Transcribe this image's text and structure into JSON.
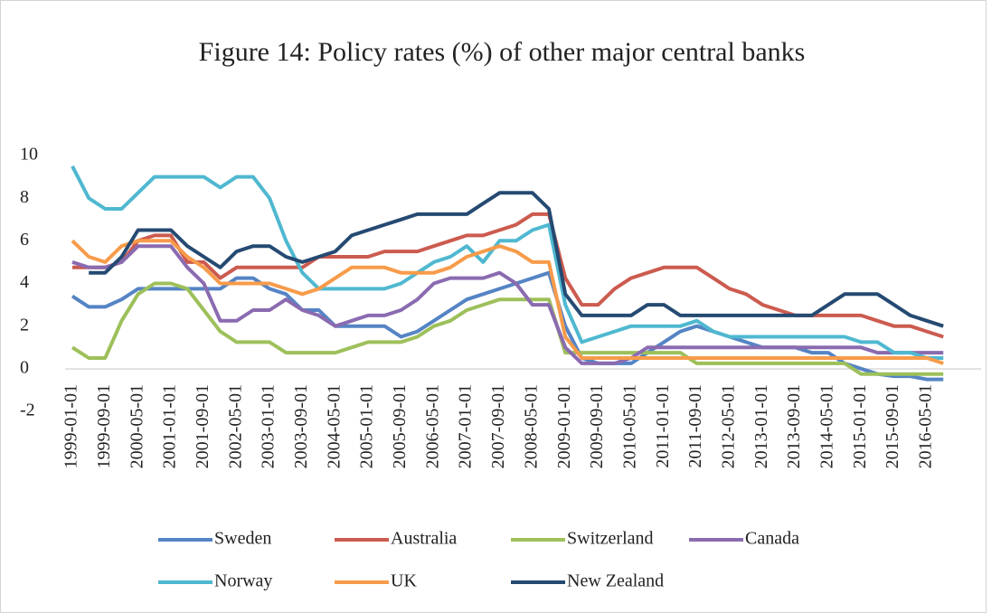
{
  "chart_data": {
    "type": "line",
    "title": "Figure 14: Policy rates (%) of  other major central banks",
    "categories": [
      "1999-01-01",
      null,
      "1999-09-01",
      null,
      "2000-05-01",
      null,
      "2001-01-01",
      null,
      "2001-09-01",
      null,
      "2002-05-01",
      null,
      "2003-01-01",
      null,
      "2003-09-01",
      null,
      "2004-05-01",
      null,
      "2005-01-01",
      null,
      "2005-09-01",
      null,
      "2006-05-01",
      null,
      "2007-01-01",
      null,
      "2007-09-01",
      null,
      "2008-05-01",
      null,
      "2009-01-01",
      null,
      "2009-09-01",
      null,
      "2010-05-01",
      null,
      "2011-01-01",
      null,
      "2011-09-01",
      null,
      "2012-05-01",
      null,
      "2013-01-01",
      null,
      "2013-09-01",
      null,
      "2014-05-01",
      null,
      "2015-01-01",
      null,
      "2015-09-01",
      null,
      "2016-05-01",
      null
    ],
    "series": [
      {
        "name": "Sweden",
        "color": "#5584c4",
        "values": [
          3.4,
          2.9,
          2.9,
          3.25,
          3.75,
          3.75,
          3.75,
          3.75,
          3.75,
          3.75,
          4.25,
          4.25,
          3.75,
          3.5,
          2.75,
          2.75,
          2.0,
          2.0,
          2.0,
          2.0,
          1.5,
          1.75,
          2.25,
          2.75,
          3.25,
          3.5,
          3.75,
          4.0,
          4.25,
          4.5,
          2.0,
          0.5,
          0.25,
          0.25,
          0.25,
          0.75,
          1.25,
          1.75,
          2.0,
          1.75,
          1.5,
          1.25,
          1.0,
          1.0,
          1.0,
          0.75,
          0.75,
          0.25,
          0.0,
          -0.25,
          -0.35,
          -0.35,
          -0.5,
          -0.5
        ]
      },
      {
        "name": "Australia",
        "color": "#cc5b4f",
        "values": [
          4.75,
          4.75,
          4.75,
          5.0,
          6.0,
          6.25,
          6.25,
          5.0,
          5.0,
          4.25,
          4.75,
          4.75,
          4.75,
          4.75,
          4.75,
          5.25,
          5.25,
          5.25,
          5.25,
          5.5,
          5.5,
          5.5,
          5.75,
          6.0,
          6.25,
          6.25,
          6.5,
          6.75,
          7.25,
          7.25,
          4.25,
          3.0,
          3.0,
          3.75,
          4.25,
          4.5,
          4.75,
          4.75,
          4.75,
          4.25,
          3.75,
          3.5,
          3.0,
          2.75,
          2.5,
          2.5,
          2.5,
          2.5,
          2.5,
          2.25,
          2.0,
          2.0,
          1.75,
          1.5
        ]
      },
      {
        "name": "Switzerland",
        "color": "#9dc05a",
        "values": [
          1.0,
          0.5,
          0.5,
          2.25,
          3.5,
          4.0,
          4.0,
          3.75,
          2.75,
          1.75,
          1.25,
          1.25,
          1.25,
          0.75,
          0.75,
          0.75,
          0.75,
          1.0,
          1.25,
          1.25,
          1.25,
          1.5,
          2.0,
          2.25,
          2.75,
          3.0,
          3.25,
          3.25,
          3.25,
          3.25,
          0.75,
          0.75,
          0.75,
          0.75,
          0.75,
          0.75,
          0.75,
          0.75,
          0.25,
          0.25,
          0.25,
          0.25,
          0.25,
          0.25,
          0.25,
          0.25,
          0.25,
          0.25,
          -0.25,
          -0.25,
          -0.25,
          -0.25,
          -0.25,
          -0.25
        ]
      },
      {
        "name": "Canada",
        "color": "#8a6bb0",
        "values": [
          5.0,
          4.75,
          4.75,
          5.0,
          5.75,
          5.75,
          5.75,
          4.75,
          4.0,
          2.25,
          2.25,
          2.75,
          2.75,
          3.25,
          2.75,
          2.5,
          2.0,
          2.25,
          2.5,
          2.5,
          2.75,
          3.25,
          4.0,
          4.25,
          4.25,
          4.25,
          4.5,
          4.0,
          3.0,
          3.0,
          1.0,
          0.25,
          0.25,
          0.25,
          0.5,
          1.0,
          1.0,
          1.0,
          1.0,
          1.0,
          1.0,
          1.0,
          1.0,
          1.0,
          1.0,
          1.0,
          1.0,
          1.0,
          1.0,
          0.75,
          0.75,
          0.75,
          0.75,
          0.75
        ]
      },
      {
        "name": "Norway",
        "color": "#4fb8d0",
        "values": [
          9.5,
          8.0,
          7.5,
          7.5,
          8.25,
          9.0,
          9.0,
          9.0,
          9.0,
          8.5,
          9.0,
          9.0,
          8.0,
          6.0,
          4.5,
          3.75,
          3.75,
          3.75,
          3.75,
          3.75,
          4.0,
          4.5,
          5.0,
          5.25,
          5.75,
          5.0,
          6.0,
          6.0,
          6.5,
          6.75,
          3.0,
          1.25,
          1.5,
          1.75,
          2.0,
          2.0,
          2.0,
          2.0,
          2.25,
          1.75,
          1.5,
          1.5,
          1.5,
          1.5,
          1.5,
          1.5,
          1.5,
          1.5,
          1.25,
          1.25,
          0.75,
          0.75,
          0.5,
          0.5
        ]
      },
      {
        "name": "UK",
        "color": "#f79b4a",
        "values": [
          6.0,
          5.25,
          5.0,
          5.75,
          6.0,
          6.0,
          6.0,
          5.25,
          4.75,
          4.0,
          4.0,
          4.0,
          4.0,
          3.75,
          3.5,
          3.75,
          4.25,
          4.75,
          4.75,
          4.75,
          4.5,
          4.5,
          4.5,
          4.75,
          5.25,
          5.5,
          5.75,
          5.5,
          5.0,
          5.0,
          1.5,
          0.5,
          0.5,
          0.5,
          0.5,
          0.5,
          0.5,
          0.5,
          0.5,
          0.5,
          0.5,
          0.5,
          0.5,
          0.5,
          0.5,
          0.5,
          0.5,
          0.5,
          0.5,
          0.5,
          0.5,
          0.5,
          0.5,
          0.25
        ]
      },
      {
        "name": "New Zealand",
        "color": "#254a72",
        "values": [
          null,
          4.5,
          4.5,
          5.25,
          6.5,
          6.5,
          6.5,
          5.75,
          5.25,
          4.75,
          5.5,
          5.75,
          5.75,
          5.25,
          5.0,
          5.25,
          5.5,
          6.25,
          6.5,
          6.75,
          7.0,
          7.25,
          7.25,
          7.25,
          7.25,
          7.75,
          8.25,
          8.25,
          8.25,
          7.5,
          3.5,
          2.5,
          2.5,
          2.5,
          2.5,
          3.0,
          3.0,
          2.5,
          2.5,
          2.5,
          2.5,
          2.5,
          2.5,
          2.5,
          2.5,
          2.5,
          3.0,
          3.5,
          3.5,
          3.5,
          3.0,
          2.5,
          2.25,
          2.0
        ]
      }
    ],
    "ylim": [
      -2,
      10
    ],
    "yticks": [
      -2,
      0,
      2,
      4,
      6,
      8,
      10
    ],
    "grid": false
  }
}
